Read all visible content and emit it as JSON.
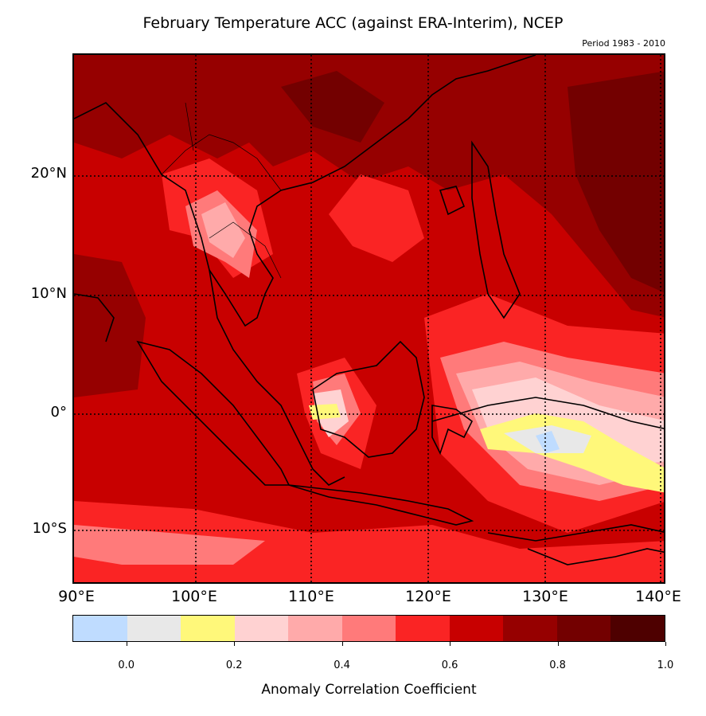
{
  "title": "February Temperature ACC (against ERA-Interim), NCEP",
  "period": "Period 1983 - 2010",
  "lat_labels": [
    {
      "text": "20°N",
      "lat": 20
    },
    {
      "text": "10°N",
      "lat": 10
    },
    {
      "text": "0°",
      "lat": 0
    },
    {
      "text": "10°S",
      "lat": -10
    }
  ],
  "lon_labels": [
    {
      "text": "90°E",
      "lon": 90
    },
    {
      "text": "100°E",
      "lon": 100
    },
    {
      "text": "110°E",
      "lon": 110
    },
    {
      "text": "120°E",
      "lon": 120
    },
    {
      "text": "130°E",
      "lon": 130
    },
    {
      "text": "140°E",
      "lon": 140
    }
  ],
  "map_extent": {
    "lon": [
      90,
      140
    ],
    "lat": [
      -14.5,
      30
    ]
  },
  "colorbar": {
    "label": "Anomaly Correlation Coefficient",
    "colors": [
      "#bfdcff",
      "#e8e8e8",
      "#fff87a",
      "#ffd2d2",
      "#ffaaaa",
      "#ff7a7a",
      "#fa2424",
      "#c80000",
      "#960000",
      "#730000",
      "#4e0000"
    ],
    "ticks": [
      "0.0",
      "0.2",
      "0.4",
      "0.6",
      "0.8",
      "1.0"
    ]
  }
}
